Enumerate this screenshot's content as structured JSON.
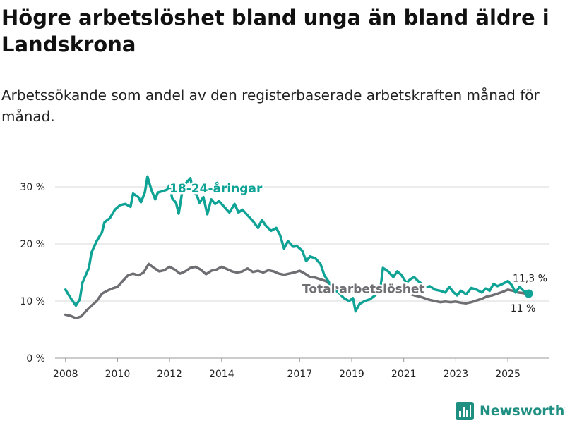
{
  "title": "Högre arbetslöshet bland unga än bland äldre i Landskrona",
  "subtitle": "Arbetssökande som andel av den registerbaserade arbetskraften månad för månad.",
  "brand": {
    "name": "Newsworthy",
    "icon": "bar-chart-logo-icon"
  },
  "colors": {
    "youth": "#0fa396",
    "total": "#6e6e73",
    "grid": "#d9d9d9",
    "text": "#222222"
  },
  "chart_data": {
    "type": "line",
    "title": "Högre arbetslöshet bland unga än bland äldre i Landskrona",
    "xlabel": "",
    "ylabel": "",
    "xlim": [
      2007.6,
      2026.6
    ],
    "ylim": [
      0,
      30
    ],
    "grid": true,
    "y_ticks": [
      {
        "value": 0,
        "label": "0 %"
      },
      {
        "value": 10,
        "label": "10 %"
      },
      {
        "value": 20,
        "label": "20 %"
      },
      {
        "value": 30,
        "label": "30 %"
      }
    ],
    "x_ticks": [
      {
        "value": 2008,
        "label": "2008"
      },
      {
        "value": 2010,
        "label": "2010"
      },
      {
        "value": 2012,
        "label": "2012"
      },
      {
        "value": 2014,
        "label": "2014"
      },
      {
        "value": 2017,
        "label": "2017"
      },
      {
        "value": 2019,
        "label": "2019"
      },
      {
        "value": 2021,
        "label": "2021"
      },
      {
        "value": 2023,
        "label": "2023"
      },
      {
        "value": 2025,
        "label": "2025"
      }
    ],
    "series": [
      {
        "name": "18-24-åringar",
        "label": "18-24-åringar",
        "color": "#0fa396",
        "points": [
          [
            2008.0,
            12.0
          ],
          [
            2008.2,
            10.5
          ],
          [
            2008.4,
            9.2
          ],
          [
            2008.55,
            10.3
          ],
          [
            2008.65,
            13.2
          ],
          [
            2008.9,
            15.8
          ],
          [
            2009.0,
            18.5
          ],
          [
            2009.2,
            20.5
          ],
          [
            2009.4,
            22.0
          ],
          [
            2009.5,
            23.8
          ],
          [
            2009.7,
            24.5
          ],
          [
            2009.9,
            26.0
          ],
          [
            2010.1,
            26.8
          ],
          [
            2010.3,
            27.0
          ],
          [
            2010.5,
            26.5
          ],
          [
            2010.6,
            28.8
          ],
          [
            2010.8,
            28.2
          ],
          [
            2010.9,
            27.3
          ],
          [
            2011.05,
            29.0
          ],
          [
            2011.15,
            31.8
          ],
          [
            2011.3,
            29.5
          ],
          [
            2011.45,
            27.8
          ],
          [
            2011.55,
            29.0
          ],
          [
            2011.7,
            29.2
          ],
          [
            2011.9,
            29.5
          ],
          [
            2012.0,
            30.3
          ],
          [
            2012.1,
            28.0
          ],
          [
            2012.25,
            27.2
          ],
          [
            2012.35,
            25.3
          ],
          [
            2012.5,
            29.5
          ],
          [
            2012.6,
            30.5
          ],
          [
            2012.8,
            31.5
          ],
          [
            2012.9,
            29.2
          ],
          [
            2013.05,
            28.5
          ],
          [
            2013.15,
            27.2
          ],
          [
            2013.3,
            28.2
          ],
          [
            2013.45,
            25.2
          ],
          [
            2013.6,
            27.8
          ],
          [
            2013.75,
            27.0
          ],
          [
            2013.9,
            27.5
          ],
          [
            2014.1,
            26.5
          ],
          [
            2014.3,
            25.5
          ],
          [
            2014.5,
            27.0
          ],
          [
            2014.65,
            25.5
          ],
          [
            2014.8,
            26.0
          ],
          [
            2015.0,
            25.0
          ],
          [
            2015.2,
            24.0
          ],
          [
            2015.4,
            22.8
          ],
          [
            2015.55,
            24.2
          ],
          [
            2015.7,
            23.2
          ],
          [
            2015.9,
            22.3
          ],
          [
            2016.1,
            22.8
          ],
          [
            2016.25,
            21.5
          ],
          [
            2016.4,
            19.2
          ],
          [
            2016.55,
            20.5
          ],
          [
            2016.75,
            19.5
          ],
          [
            2016.9,
            19.6
          ],
          [
            2017.1,
            18.8
          ],
          [
            2017.25,
            17.0
          ],
          [
            2017.4,
            17.8
          ],
          [
            2017.6,
            17.5
          ],
          [
            2017.8,
            16.5
          ],
          [
            2017.95,
            14.5
          ],
          [
            2018.1,
            13.5
          ],
          [
            2018.25,
            12.2
          ],
          [
            2018.5,
            11.5
          ],
          [
            2018.7,
            10.5
          ],
          [
            2018.9,
            10.0
          ],
          [
            2019.05,
            10.5
          ],
          [
            2019.15,
            8.2
          ],
          [
            2019.3,
            9.5
          ],
          [
            2019.5,
            10.0
          ],
          [
            2019.7,
            10.3
          ],
          [
            2019.9,
            11.0
          ],
          [
            2020.0,
            11.5
          ],
          [
            2020.1,
            12.0
          ],
          [
            2020.2,
            15.8
          ],
          [
            2020.4,
            15.2
          ],
          [
            2020.6,
            14.2
          ],
          [
            2020.75,
            15.2
          ],
          [
            2020.9,
            14.6
          ],
          [
            2021.1,
            13.2
          ],
          [
            2021.25,
            13.8
          ],
          [
            2021.4,
            14.2
          ],
          [
            2021.55,
            13.5
          ],
          [
            2021.7,
            13.0
          ],
          [
            2021.85,
            12.4
          ],
          [
            2022.0,
            12.6
          ],
          [
            2022.2,
            12.0
          ],
          [
            2022.4,
            11.8
          ],
          [
            2022.6,
            11.5
          ],
          [
            2022.75,
            12.5
          ],
          [
            2022.9,
            11.6
          ],
          [
            2023.05,
            11.0
          ],
          [
            2023.2,
            11.8
          ],
          [
            2023.4,
            11.2
          ],
          [
            2023.6,
            12.3
          ],
          [
            2023.8,
            12.0
          ],
          [
            2024.0,
            11.5
          ],
          [
            2024.15,
            12.2
          ],
          [
            2024.3,
            11.8
          ],
          [
            2024.45,
            13.0
          ],
          [
            2024.6,
            12.6
          ],
          [
            2024.8,
            13.0
          ],
          [
            2025.0,
            13.5
          ],
          [
            2025.15,
            12.8
          ],
          [
            2025.3,
            11.5
          ],
          [
            2025.45,
            12.5
          ],
          [
            2025.6,
            11.8
          ],
          [
            2025.8,
            11.3
          ]
        ]
      },
      {
        "name": "Total arbetslöshet",
        "label": "Total arbetslöshet",
        "color": "#6e6e73",
        "points": [
          [
            2008.0,
            7.6
          ],
          [
            2008.2,
            7.4
          ],
          [
            2008.4,
            7.0
          ],
          [
            2008.6,
            7.3
          ],
          [
            2008.8,
            8.3
          ],
          [
            2009.0,
            9.2
          ],
          [
            2009.2,
            10.0
          ],
          [
            2009.4,
            11.3
          ],
          [
            2009.6,
            11.8
          ],
          [
            2009.8,
            12.2
          ],
          [
            2010.0,
            12.5
          ],
          [
            2010.2,
            13.5
          ],
          [
            2010.4,
            14.5
          ],
          [
            2010.6,
            14.8
          ],
          [
            2010.8,
            14.5
          ],
          [
            2011.0,
            15.0
          ],
          [
            2011.2,
            16.5
          ],
          [
            2011.4,
            15.8
          ],
          [
            2011.6,
            15.2
          ],
          [
            2011.8,
            15.4
          ],
          [
            2012.0,
            16.0
          ],
          [
            2012.2,
            15.5
          ],
          [
            2012.4,
            14.8
          ],
          [
            2012.6,
            15.2
          ],
          [
            2012.8,
            15.8
          ],
          [
            2013.0,
            16.0
          ],
          [
            2013.2,
            15.5
          ],
          [
            2013.4,
            14.7
          ],
          [
            2013.6,
            15.3
          ],
          [
            2013.8,
            15.5
          ],
          [
            2014.0,
            16.0
          ],
          [
            2014.2,
            15.6
          ],
          [
            2014.4,
            15.2
          ],
          [
            2014.6,
            15.0
          ],
          [
            2014.8,
            15.2
          ],
          [
            2015.0,
            15.7
          ],
          [
            2015.2,
            15.1
          ],
          [
            2015.4,
            15.3
          ],
          [
            2015.6,
            15.0
          ],
          [
            2015.8,
            15.4
          ],
          [
            2016.0,
            15.2
          ],
          [
            2016.2,
            14.8
          ],
          [
            2016.4,
            14.6
          ],
          [
            2016.6,
            14.8
          ],
          [
            2016.8,
            15.0
          ],
          [
            2017.0,
            15.3
          ],
          [
            2017.2,
            14.8
          ],
          [
            2017.4,
            14.2
          ],
          [
            2017.6,
            14.1
          ],
          [
            2017.8,
            13.8
          ],
          [
            2018.0,
            13.5
          ],
          [
            2018.2,
            12.8
          ],
          [
            2018.4,
            12.4
          ],
          [
            2018.6,
            12.0
          ],
          [
            2018.8,
            11.8
          ],
          [
            2019.0,
            11.6
          ],
          [
            2019.2,
            11.5
          ],
          [
            2019.4,
            11.8
          ],
          [
            2019.6,
            12.2
          ],
          [
            2019.8,
            12.5
          ],
          [
            2020.0,
            12.6
          ],
          [
            2020.2,
            12.8
          ],
          [
            2020.4,
            12.5
          ],
          [
            2020.6,
            12.2
          ],
          [
            2020.8,
            11.9
          ],
          [
            2021.0,
            11.6
          ],
          [
            2021.2,
            11.3
          ],
          [
            2021.4,
            11.0
          ],
          [
            2021.6,
            10.8
          ],
          [
            2021.8,
            10.5
          ],
          [
            2022.0,
            10.2
          ],
          [
            2022.2,
            10.0
          ],
          [
            2022.4,
            9.8
          ],
          [
            2022.6,
            9.9
          ],
          [
            2022.8,
            9.8
          ],
          [
            2023.0,
            9.9
          ],
          [
            2023.2,
            9.7
          ],
          [
            2023.4,
            9.6
          ],
          [
            2023.6,
            9.8
          ],
          [
            2023.8,
            10.1
          ],
          [
            2024.0,
            10.4
          ],
          [
            2024.2,
            10.8
          ],
          [
            2024.4,
            11.0
          ],
          [
            2024.6,
            11.3
          ],
          [
            2024.8,
            11.6
          ],
          [
            2025.0,
            12.0
          ],
          [
            2025.2,
            11.8
          ],
          [
            2025.4,
            11.5
          ],
          [
            2025.6,
            11.4
          ],
          [
            2025.8,
            11.0
          ]
        ]
      }
    ],
    "end_labels": [
      {
        "series": "18-24-åringar",
        "value": 11.3,
        "text": "11,3 %"
      },
      {
        "series": "Total arbetslöshet",
        "value": 11.0,
        "text": "11 %"
      }
    ]
  }
}
